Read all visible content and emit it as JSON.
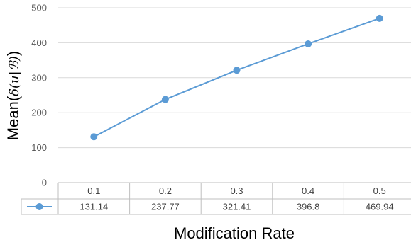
{
  "chart_data": {
    "type": "line",
    "title": "",
    "xlabel": "Modification Rate",
    "ylabel": "Mean(",
    "ylabel_math": "δ(u|ℬ)",
    "ylabel_close": ")",
    "ylim": [
      0,
      500
    ],
    "yticks": [
      0,
      100,
      200,
      300,
      400,
      500
    ],
    "grid": true,
    "legend": "table-row",
    "categories": [
      "0.1",
      "0.2",
      "0.3",
      "0.4",
      "0.5"
    ],
    "series": [
      {
        "values": [
          131.14,
          237.77,
          321.41,
          396.8,
          469.94
        ],
        "labels": [
          "131.14",
          "237.77",
          "321.41",
          "396.8",
          "469.94"
        ],
        "color": "#5b9bd5"
      }
    ],
    "colors": {
      "grid": "#d9d9d9",
      "table_border": "#bfbfbf"
    }
  }
}
